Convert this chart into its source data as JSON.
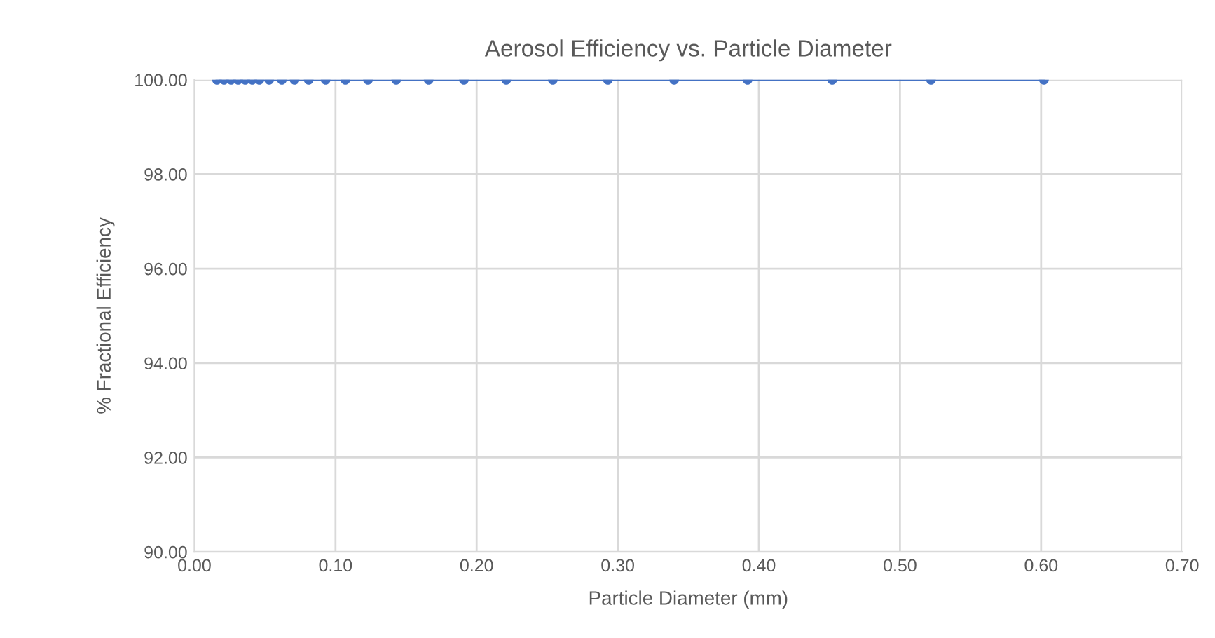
{
  "chart_data": {
    "type": "line",
    "title": "Aerosol Efficiency vs. Particle Diameter",
    "xlabel": "Particle Diameter (mm)",
    "ylabel": "% Fractional Efficiency",
    "x": [
      0.016,
      0.021,
      0.026,
      0.031,
      0.036,
      0.041,
      0.046,
      0.053,
      0.062,
      0.071,
      0.081,
      0.093,
      0.107,
      0.123,
      0.143,
      0.166,
      0.191,
      0.221,
      0.254,
      0.293,
      0.34,
      0.392,
      0.452,
      0.522,
      0.602
    ],
    "series": [
      {
        "color": "#4472c4",
        "values": [
          100,
          100,
          100,
          100,
          100,
          100,
          100,
          100,
          100,
          100,
          100,
          100,
          100,
          100,
          100,
          100,
          100,
          100,
          100,
          100,
          100,
          100,
          100,
          100,
          100
        ]
      }
    ],
    "xlim": [
      0,
      0.7
    ],
    "ylim": [
      90,
      100
    ],
    "xticks": [
      {
        "value": 0,
        "label": "0.00"
      },
      {
        "value": 0.1,
        "label": "0.10"
      },
      {
        "value": 0.2,
        "label": "0.20"
      },
      {
        "value": 0.3,
        "label": "0.30"
      },
      {
        "value": 0.4,
        "label": "0.40"
      },
      {
        "value": 0.5,
        "label": "0.50"
      },
      {
        "value": 0.6,
        "label": "0.60"
      },
      {
        "value": 0.7,
        "label": "0.70"
      }
    ],
    "yticks": [
      {
        "value": 90,
        "label": "90.00"
      },
      {
        "value": 92,
        "label": "92.00"
      },
      {
        "value": 94,
        "label": "94.00"
      },
      {
        "value": 96,
        "label": "96.00"
      },
      {
        "value": 98,
        "label": "98.00"
      },
      {
        "value": 100,
        "label": "100.00"
      }
    ],
    "grid": true,
    "marker": "circle",
    "line_style": "solid"
  }
}
